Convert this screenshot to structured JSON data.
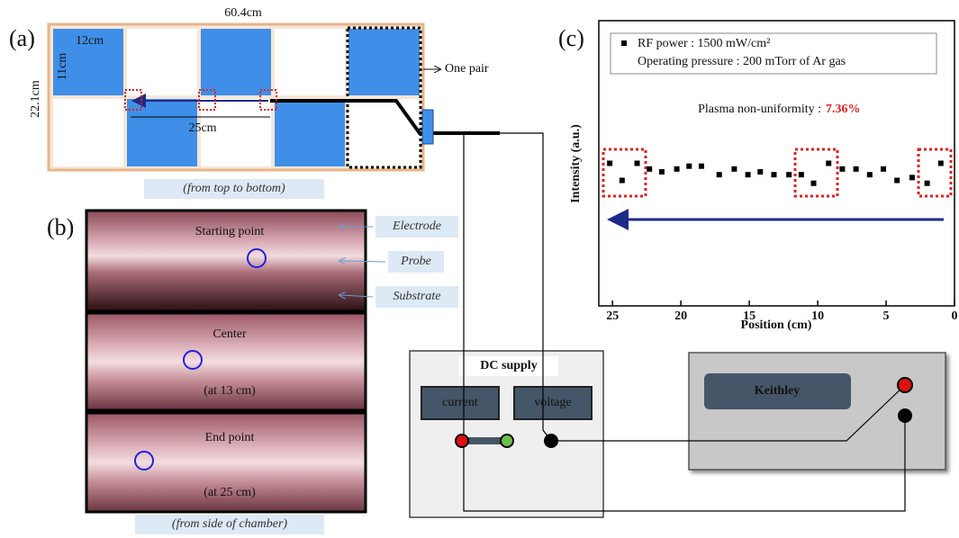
{
  "panel_a": {
    "label": "(a)",
    "width": "60.4cm",
    "height": "22.1cm",
    "cell_width": "12cm",
    "cell_height": "11cm",
    "pair": "One pair",
    "distance": "25cm",
    "caption": "(from top to bottom)"
  },
  "panel_b": {
    "label": "(b)",
    "photos": [
      {
        "title": "Starting point"
      },
      {
        "title": "Center",
        "note": "(at 13 cm)"
      },
      {
        "title": "End point",
        "note": "(at 25 cm)"
      }
    ],
    "callouts": [
      "Electrode",
      "Probe",
      "Substrate"
    ],
    "caption": "(from side of chamber)"
  },
  "panel_c_label": "(c)",
  "equipment": {
    "dc_supply": "DC supply",
    "current": "current",
    "voltage": "voltage",
    "keithley": "Keithley"
  },
  "chart_data": {
    "type": "scatter",
    "x_label": "Position (cm)",
    "y_label": "Intensity (a.u.)",
    "xlim": [
      26,
      0
    ],
    "xticks": [
      25,
      20,
      15,
      10,
      5,
      0
    ],
    "ylim": [
      0,
      1
    ],
    "x": [
      25.2,
      24.3,
      23.2,
      22.3,
      21.4,
      20.3,
      19.4,
      18.5,
      17.2,
      16.1,
      15.1,
      14.2,
      13.2,
      12.1,
      11.2,
      10.3,
      9.2,
      8.2,
      7.2,
      6.2,
      5.2,
      4.2,
      3.1,
      2.0,
      1.0
    ],
    "series": [
      {
        "name": "RF power : 1500 mW/cm²",
        "color": "#000000",
        "values": [
          0.5,
          0.44,
          0.5,
          0.48,
          0.47,
          0.48,
          0.49,
          0.49,
          0.46,
          0.48,
          0.46,
          0.47,
          0.46,
          0.46,
          0.46,
          0.43,
          0.5,
          0.48,
          0.48,
          0.46,
          0.48,
          0.44,
          0.45,
          0.43,
          0.5
        ]
      }
    ],
    "annotations": [
      "Operating pressure : 200 mTorr of Ar gas",
      "Plasma non-uniformity :",
      "7.36%"
    ]
  }
}
